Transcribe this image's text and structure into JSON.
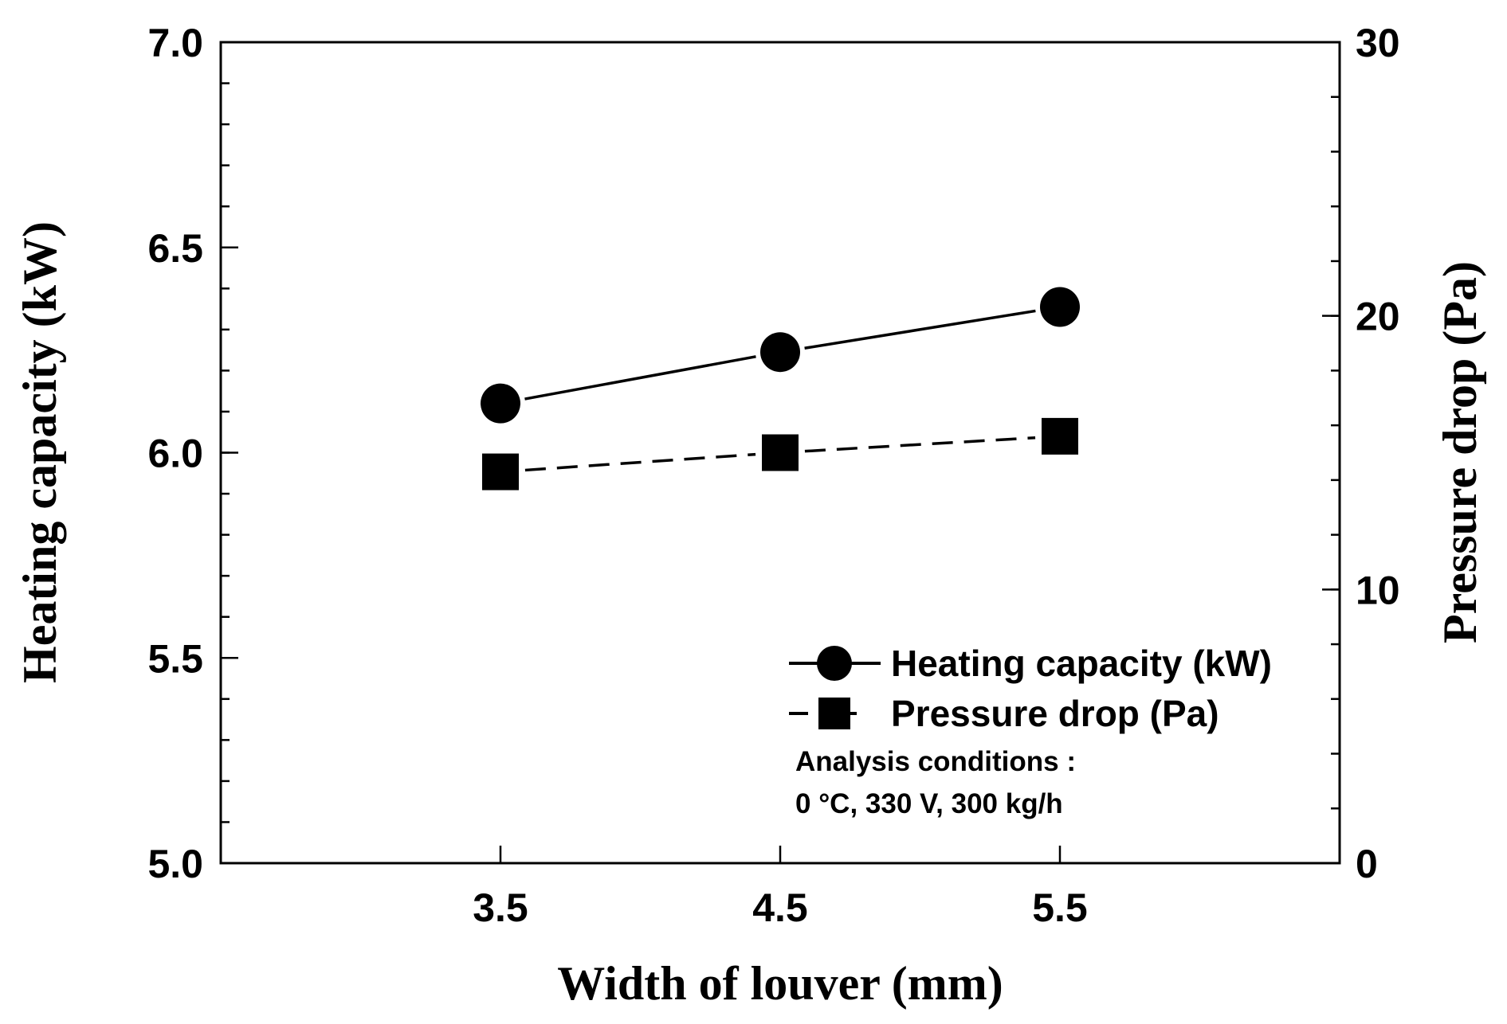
{
  "chart_data": {
    "type": "line",
    "title": "",
    "xlabel": "Width of louver (mm)",
    "ylabel": "Heating capacity (kW)",
    "y2label": "Pressure drop (Pa)",
    "x": [
      3.5,
      4.5,
      5.5
    ],
    "x_tick_labels": [
      "3.5",
      "4.5",
      "5.5"
    ],
    "xlim": [
      2.5,
      6.5
    ],
    "ylim": [
      5.0,
      7.0
    ],
    "y_ticks": [
      5.0,
      5.5,
      6.0,
      6.5,
      7.0
    ],
    "y_tick_labels": [
      "5.0",
      "5.5",
      "6.0",
      "6.5",
      "7.0"
    ],
    "y_minor_step": 0.1,
    "y2lim": [
      0,
      30
    ],
    "y2_ticks": [
      0,
      10,
      20,
      30
    ],
    "y2_tick_labels": [
      "0",
      "10",
      "20",
      "30"
    ],
    "y2_minor_step": 2,
    "grid": false,
    "legend_position": "bottom-right",
    "series": [
      {
        "name": "Heating capacity (kW)",
        "axis": "left",
        "marker": "circle",
        "line": "solid",
        "values": [
          6.12,
          6.245,
          6.355
        ]
      },
      {
        "name": "Pressure drop (Pa)",
        "axis": "right",
        "marker": "square",
        "line": "dashed",
        "values": [
          14.3,
          15.0,
          15.6
        ]
      }
    ],
    "annotations": [
      "Analysis conditions :",
      "0 °C, 330 V, 300 kg/h"
    ]
  }
}
